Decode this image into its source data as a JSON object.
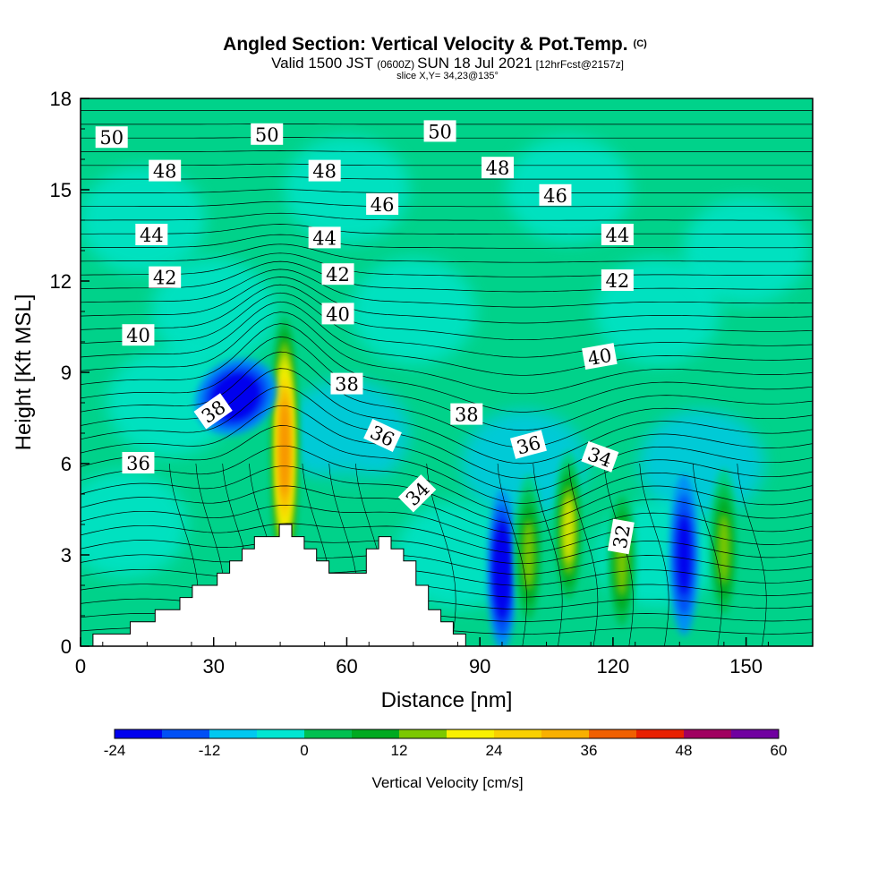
{
  "title": {
    "main": "Angled Section: Vertical Velocity & Pot.Temp.",
    "main_unit": "(C)",
    "valid_prefix": "Valid 1500 JST",
    "valid_utc": "(0600Z)",
    "valid_date": "SUN 18 Jul 2021",
    "forecast": "[12hrFcst@2157z]",
    "slice": "slice X,Y= 34,23@135°"
  },
  "chart_data": {
    "type": "heatmap",
    "xlabel": "Distance [nm]",
    "ylabel": "Height [Kft MSL]",
    "xlim": [
      0,
      165
    ],
    "ylim": [
      0,
      18
    ],
    "x_ticks": [
      0,
      30,
      60,
      90,
      120,
      150
    ],
    "y_ticks": [
      0,
      3,
      6,
      9,
      12,
      15,
      18
    ],
    "grid": false,
    "colorbar": {
      "label": "Vertical Velocity [cm/s]",
      "min": -24,
      "max": 60,
      "step": 6,
      "tick_values": [
        -24,
        -12,
        0,
        12,
        24,
        36,
        48,
        60
      ],
      "colors": [
        "#0000ee",
        "#0050f5",
        "#0090f5",
        "#00c8f0",
        "#00e6d2",
        "#00d28a",
        "#00c050",
        "#00aa20",
        "#7cc800",
        "#d8e600",
        "#f8f000",
        "#f8d000",
        "#f8b000",
        "#f89000",
        "#f06000",
        "#e82000",
        "#d00020",
        "#a00060",
        "#7000a0"
      ]
    },
    "vertical_velocity_features": [
      {
        "x": 46,
        "y": 6.5,
        "value": 52
      },
      {
        "x": 35,
        "y": 8.2,
        "value": -22
      },
      {
        "x": 95,
        "y": 2.5,
        "value": -22
      },
      {
        "x": 101,
        "y": 3.0,
        "value": 26
      },
      {
        "x": 110,
        "y": 3.8,
        "value": 30
      },
      {
        "x": 122,
        "y": 2.8,
        "value": 22
      },
      {
        "x": 136,
        "y": 3.0,
        "value": -16
      },
      {
        "x": 145,
        "y": 3.2,
        "value": 24
      }
    ],
    "terrain": [
      {
        "x": 0,
        "y": 0
      },
      {
        "x": 10,
        "y": 0.6
      },
      {
        "x": 20,
        "y": 1.2
      },
      {
        "x": 30,
        "y": 2.2
      },
      {
        "x": 40,
        "y": 3.5
      },
      {
        "x": 46,
        "y": 3.9
      },
      {
        "x": 52,
        "y": 3.3
      },
      {
        "x": 58,
        "y": 2.5
      },
      {
        "x": 62,
        "y": 2.3
      },
      {
        "x": 65,
        "y": 3.1
      },
      {
        "x": 70,
        "y": 3.6
      },
      {
        "x": 75,
        "y": 2.6
      },
      {
        "x": 80,
        "y": 1.2
      },
      {
        "x": 86,
        "y": 0.4
      },
      {
        "x": 90,
        "y": 0
      },
      {
        "x": 165,
        "y": 0
      }
    ],
    "potential_temperature_labels": [
      {
        "text": "50",
        "x": 7,
        "y": 16.7
      },
      {
        "text": "50",
        "x": 42,
        "y": 16.8
      },
      {
        "text": "50",
        "x": 81,
        "y": 16.9
      },
      {
        "text": "48",
        "x": 19,
        "y": 15.6
      },
      {
        "text": "48",
        "x": 55,
        "y": 15.6
      },
      {
        "text": "48",
        "x": 94,
        "y": 15.7
      },
      {
        "text": "46",
        "x": 68,
        "y": 14.5
      },
      {
        "text": "46",
        "x": 107,
        "y": 14.8
      },
      {
        "text": "44",
        "x": 16,
        "y": 13.5
      },
      {
        "text": "44",
        "x": 55,
        "y": 13.4
      },
      {
        "text": "44",
        "x": 121,
        "y": 13.5
      },
      {
        "text": "42",
        "x": 19,
        "y": 12.1
      },
      {
        "text": "42",
        "x": 58,
        "y": 12.2
      },
      {
        "text": "42",
        "x": 121,
        "y": 12.0
      },
      {
        "text": "40",
        "x": 13,
        "y": 10.2
      },
      {
        "text": "40",
        "x": 58,
        "y": 10.9
      },
      {
        "text": "40",
        "x": 117,
        "y": 9.5
      },
      {
        "text": "38",
        "x": 60,
        "y": 8.6
      },
      {
        "text": "38",
        "x": 87,
        "y": 7.6
      },
      {
        "text": "38",
        "x": 30,
        "y": 7.7
      },
      {
        "text": "36",
        "x": 13,
        "y": 6.0
      },
      {
        "text": "36",
        "x": 68,
        "y": 6.9
      },
      {
        "text": "36",
        "x": 101,
        "y": 6.6
      },
      {
        "text": "34",
        "x": 76,
        "y": 5.0
      },
      {
        "text": "34",
        "x": 117,
        "y": 6.2
      },
      {
        "text": "32",
        "x": 122,
        "y": 3.6
      }
    ]
  }
}
